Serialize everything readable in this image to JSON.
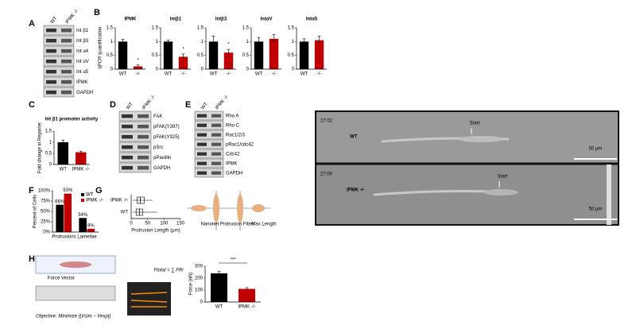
{
  "panel_labels": [
    "A",
    "B",
    "C",
    "D",
    "E",
    "F",
    "G",
    "H"
  ],
  "blot_a": {
    "columns": [
      "WT",
      "IPMK -/-"
    ],
    "rows": [
      "Int β1",
      "Int β3",
      "Int α4",
      "Int αV",
      "Int α5",
      "IPMK",
      "GAPDH"
    ]
  },
  "qpcr": {
    "y_label": "qPCR quantification",
    "ylim": [
      0,
      1.5
    ],
    "yticks": [
      0,
      0.5,
      1,
      1.5
    ],
    "categories": [
      "WT",
      "-/-"
    ],
    "colors": [
      "#000000",
      "#c00000"
    ],
    "charts": [
      {
        "title": "IPMK",
        "values": [
          1,
          0.1
        ],
        "errors": [
          0.08,
          0.05
        ],
        "annotation": "*"
      },
      {
        "title": "Intβ1",
        "values": [
          1,
          0.45
        ],
        "errors": [
          0.06,
          0.1
        ],
        "annotation": "*"
      },
      {
        "title": "Intβ3",
        "values": [
          1,
          0.6
        ],
        "errors": [
          0.2,
          0.12
        ],
        "annotation": "*"
      },
      {
        "title": "IntαV",
        "values": [
          1,
          1.1
        ],
        "errors": [
          0.15,
          0.15
        ]
      },
      {
        "title": "Intα5",
        "values": [
          1,
          1.05
        ],
        "errors": [
          0.1,
          0.15
        ]
      }
    ]
  },
  "promoter": {
    "title": "Int β1 promoter activity",
    "y_label": "Fold change in Reporter",
    "categories": [
      "WT",
      "IPMK -/-"
    ],
    "values": [
      1.0,
      0.55
    ],
    "errors": [
      0.1,
      0.05
    ],
    "colors": [
      "#000000",
      "#c00000"
    ],
    "ylim": [
      0,
      1.5
    ],
    "yticks": [
      0,
      0.5,
      1,
      1.5
    ]
  },
  "blot_d": {
    "columns": [
      "WT",
      "IPMK -/-"
    ],
    "rows": [
      "FAK",
      "pFAK(Y397)",
      "pFAK(Y925)",
      "pSrc",
      "pPaxillin",
      "GAPDH"
    ]
  },
  "blot_e": {
    "columns": [
      "WT",
      "IPMK -/-"
    ],
    "rows": [
      "Rho A",
      "Rho C",
      "Rac1/2/3",
      "pRac1/cdc42",
      "Cdc42",
      "IPMK",
      "GAPDH"
    ]
  },
  "cells": {
    "y_label": "Percent of Cells",
    "x_label": "Protrusions",
    "categories": [
      "Protrusions",
      "Lamellae"
    ],
    "series": [
      {
        "name": "WT",
        "color": "#000000",
        "values": [
          66,
          34
        ],
        "value_labels": [
          "66%",
          "34%"
        ]
      },
      {
        "name": "IPMK -/-",
        "color": "#c00000",
        "values": [
          93,
          8
        ],
        "value_labels": [
          "93%",
          "8%"
        ]
      }
    ],
    "ylim": [
      0,
      100
    ],
    "yticks": [
      {
        "value": 0,
        "label": "0%"
      },
      {
        "value": 25,
        "label": "25%"
      },
      {
        "value": 50,
        "label": "50%"
      },
      {
        "value": 75,
        "label": "75%"
      },
      {
        "value": 100,
        "label": "100%"
      }
    ]
  },
  "lengths": {
    "x_label": "Protrusion Length (µm)",
    "categories": [
      "IPMK -/-",
      "WT"
    ],
    "xlim": [
      0,
      150
    ],
    "xticks": [
      0,
      50,
      100,
      150
    ],
    "boxes": [
      {
        "min": 5,
        "q1": 18,
        "median": 28,
        "q3": 40,
        "max": 65
      },
      {
        "min": 5,
        "q1": 15,
        "median": 25,
        "q3": 35,
        "max": 80
      }
    ],
    "diagram_labels": [
      "Nanonet Protrusion Fiber",
      "Max Length"
    ]
  },
  "force": {
    "equation": "Ftotal = ∑ FRi",
    "objective": "Objective: Minimize (|Vsim − Vexp|)",
    "schematic_label": "Force Vector",
    "y_label": "Force (nN)",
    "categories": [
      "WT",
      "IPMK -/-"
    ],
    "values": [
      240,
      110
    ],
    "errors": [
      15,
      10
    ],
    "colors": [
      "#000000",
      "#c00000"
    ],
    "ylim": [
      0,
      300
    ],
    "yticks": [
      0,
      100,
      200,
      300
    ],
    "annotation": "***"
  },
  "videos": [
    {
      "time": "27:02",
      "label": "WT",
      "marker": "Start",
      "scale": "50 µm"
    },
    {
      "time": "27:00",
      "label": "IPMK -/-",
      "marker": "Start",
      "scale": "50 µm"
    }
  ]
}
